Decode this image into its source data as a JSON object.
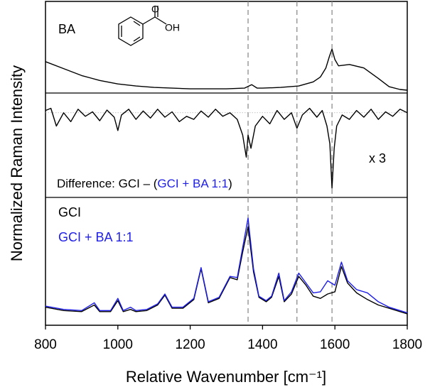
{
  "chart_data": {
    "type": "line",
    "xlabel": "Relative Wavenumber [cm⁻¹]",
    "ylabel": "Normalized Raman Intensity",
    "xlim": [
      800,
      1800
    ],
    "xticks": [
      800,
      1000,
      1200,
      1400,
      1600,
      1800
    ],
    "xtick_labels": [
      "800",
      "1000",
      "1200",
      "1400",
      "1600",
      "1800"
    ],
    "reference_lines": [
      1360,
      1495,
      1592
    ],
    "panels": [
      {
        "id": "ba",
        "label": "BA",
        "ylim": [
          0,
          1
        ],
        "series": [
          {
            "name": "BA",
            "color": "#000000",
            "x": [
              800,
              850,
              900,
              950,
              1000,
              1050,
              1100,
              1150,
              1200,
              1250,
              1300,
              1350,
              1370,
              1385,
              1400,
              1450,
              1500,
              1540,
              1560,
              1575,
              1585,
              1592,
              1600,
              1610,
              1640,
              1680,
              1720,
              1750,
              1780,
              1800
            ],
            "y": [
              0.42,
              0.32,
              0.22,
              0.15,
              0.1,
              0.07,
              0.05,
              0.04,
              0.03,
              0.03,
              0.03,
              0.04,
              0.09,
              0.04,
              0.04,
              0.05,
              0.07,
              0.13,
              0.2,
              0.33,
              0.5,
              0.6,
              0.45,
              0.36,
              0.38,
              0.33,
              0.18,
              0.06,
              0.02,
              0.01
            ]
          }
        ]
      },
      {
        "id": "difference",
        "label": "Difference: GCI – (GCI + BA 1:1)",
        "label_prefix": "Difference: GCI – (",
        "label_blue": "GCI + BA 1:1",
        "label_suffix": ")",
        "scale_note": "x 3",
        "ylim": [
          -1,
          1
        ],
        "zero_line": 0.7,
        "series": [
          {
            "name": "Difference x3",
            "color": "#000000",
            "x": [
              800,
              815,
              830,
              850,
              870,
              890,
              910,
              930,
              950,
              970,
              990,
              1000,
              1010,
              1030,
              1050,
              1070,
              1090,
              1110,
              1130,
              1150,
              1170,
              1190,
              1210,
              1230,
              1250,
              1270,
              1290,
              1310,
              1330,
              1345,
              1355,
              1360,
              1368,
              1380,
              1400,
              1420,
              1440,
              1460,
              1480,
              1495,
              1510,
              1530,
              1550,
              1565,
              1578,
              1586,
              1592,
              1598,
              1605,
              1620,
              1640,
              1660,
              1680,
              1700,
              1720,
              1740,
              1760,
              1780,
              1800
            ],
            "y": [
              0.75,
              0.8,
              0.4,
              0.7,
              0.5,
              0.78,
              0.62,
              0.72,
              0.52,
              0.76,
              0.6,
              0.3,
              0.65,
              0.78,
              0.55,
              0.74,
              0.58,
              0.78,
              0.6,
              0.72,
              0.5,
              0.62,
              0.55,
              0.74,
              0.6,
              0.78,
              0.62,
              0.7,
              0.55,
              0.2,
              -0.3,
              0.2,
              -0.1,
              0.4,
              0.62,
              0.45,
              0.75,
              0.55,
              0.7,
              0.35,
              0.65,
              0.8,
              0.6,
              0.75,
              0.4,
              0.0,
              -1.0,
              -0.1,
              0.4,
              0.65,
              0.55,
              0.75,
              0.6,
              0.78,
              0.55,
              0.72,
              0.62,
              0.78,
              0.7
            ]
          }
        ]
      },
      {
        "id": "gci",
        "label": "GCI",
        "ylim": [
          0,
          1
        ],
        "series": [
          {
            "name": "GCI",
            "color": "#000000",
            "x": [
              800,
              850,
              900,
              935,
              950,
              980,
              1000,
              1015,
              1035,
              1050,
              1080,
              1110,
              1130,
              1150,
              1180,
              1210,
              1230,
              1250,
              1280,
              1310,
              1330,
              1345,
              1360,
              1375,
              1390,
              1410,
              1425,
              1445,
              1460,
              1480,
              1500,
              1520,
              1540,
              1560,
              1580,
              1600,
              1618,
              1635,
              1660,
              1690,
              1720,
              1750,
              1780,
              1800
            ],
            "y": [
              0.08,
              0.05,
              0.04,
              0.1,
              0.04,
              0.04,
              0.14,
              0.04,
              0.06,
              0.04,
              0.05,
              0.1,
              0.19,
              0.07,
              0.07,
              0.15,
              0.43,
              0.12,
              0.16,
              0.35,
              0.33,
              0.58,
              0.81,
              0.4,
              0.17,
              0.13,
              0.17,
              0.36,
              0.13,
              0.2,
              0.36,
              0.28,
              0.18,
              0.16,
              0.2,
              0.22,
              0.45,
              0.3,
              0.21,
              0.15,
              0.1,
              0.07,
              0.04,
              0.02
            ]
          },
          {
            "name": "GCI + BA 1:1",
            "color": "#1e1ee6",
            "x": [
              800,
              850,
              900,
              935,
              950,
              980,
              1000,
              1015,
              1035,
              1050,
              1080,
              1110,
              1130,
              1150,
              1180,
              1210,
              1230,
              1250,
              1280,
              1310,
              1330,
              1345,
              1360,
              1375,
              1390,
              1410,
              1425,
              1445,
              1460,
              1480,
              1500,
              1520,
              1540,
              1560,
              1580,
              1600,
              1618,
              1635,
              1660,
              1690,
              1720,
              1750,
              1780,
              1800
            ],
            "y": [
              0.09,
              0.06,
              0.05,
              0.12,
              0.05,
              0.05,
              0.16,
              0.05,
              0.08,
              0.05,
              0.06,
              0.11,
              0.2,
              0.08,
              0.08,
              0.16,
              0.44,
              0.13,
              0.17,
              0.36,
              0.35,
              0.62,
              0.89,
              0.43,
              0.18,
              0.14,
              0.18,
              0.39,
              0.14,
              0.22,
              0.39,
              0.3,
              0.21,
              0.22,
              0.32,
              0.28,
              0.49,
              0.32,
              0.24,
              0.21,
              0.13,
              0.08,
              0.05,
              0.03
            ]
          }
        ]
      }
    ],
    "legend": [
      "GCI",
      "GCI + BA 1:1"
    ]
  },
  "colors": {
    "axis": "#000000",
    "refline": "#8c8c8c",
    "blue": "#1e1ee6"
  },
  "structure": {
    "name": "benzoic-acid-structure",
    "atom_labels": [
      "O",
      "OH"
    ]
  }
}
